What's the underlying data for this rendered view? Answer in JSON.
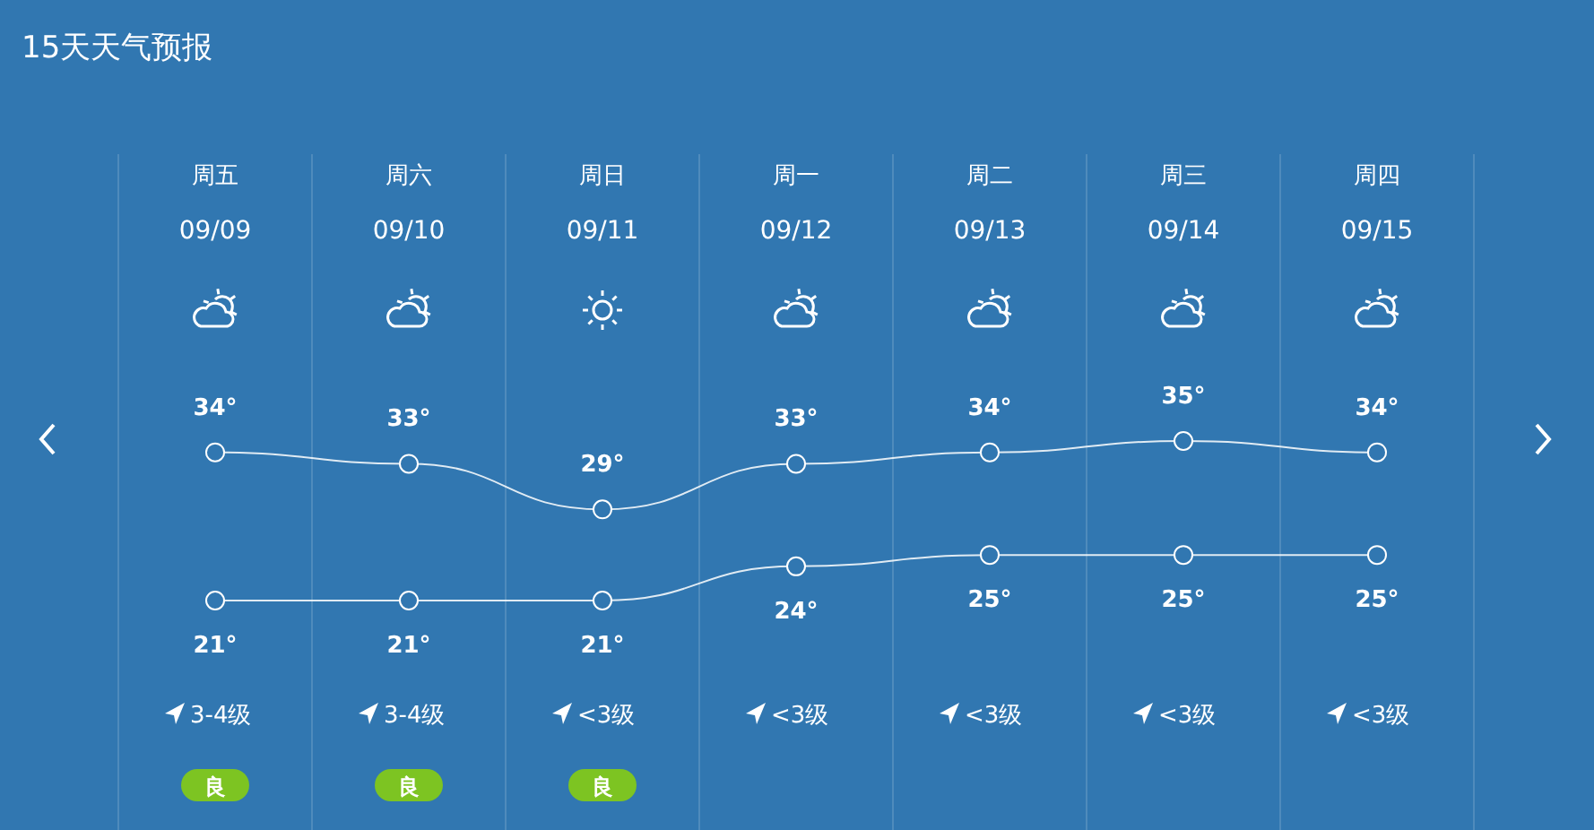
{
  "chart_data": {
    "type": "line",
    "title": "15天天气预报",
    "categories": [
      "周五\n09/09",
      "周六\n09/10",
      "周日\n09/11",
      "周一\n09/12",
      "周二\n09/13",
      "周三\n09/14",
      "周四\n09/15"
    ],
    "series": [
      {
        "color": "#ffffff",
        "values": [
          34,
          33,
          29,
          33,
          34,
          35,
          34
        ],
        "value_labels": [
          "34°",
          "33°",
          "29°",
          "33°",
          "34°",
          "35°",
          "34°"
        ]
      },
      {
        "color": "#ffffff",
        "values": [
          21,
          21,
          21,
          24,
          25,
          25,
          25
        ],
        "value_labels": [
          "21°",
          "21°",
          "21°",
          "24°",
          "25°",
          "25°",
          "25°"
        ]
      }
    ],
    "annotations": [
      "3-4级",
      "3-4级",
      "<3级",
      "<3级",
      "<3级",
      "<3级",
      "<3级",
      "良",
      "良",
      "良"
    ],
    "marker": "circle",
    "line_style": "solid",
    "grid": "x"
  }
}
